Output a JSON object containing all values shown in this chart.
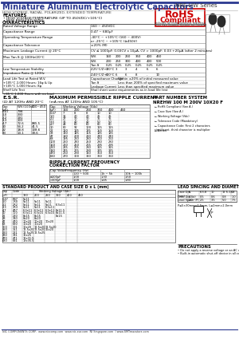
{
  "title": "Miniature Aluminum Electrolytic Capacitors",
  "series": "NRE-HW Series",
  "subtitle": "HIGH VOLTAGE, RADIAL, POLARIZED, EXTENDED TEMPERATURE",
  "features": [
    "HIGH VOLTAGE/TEMPERATURE (UP TO 450VDC/+105°C)",
    "NEW REDUCED SIZES"
  ],
  "bg_color": "#ffffff",
  "title_color": "#2B3990",
  "header_color": "#2B3990"
}
